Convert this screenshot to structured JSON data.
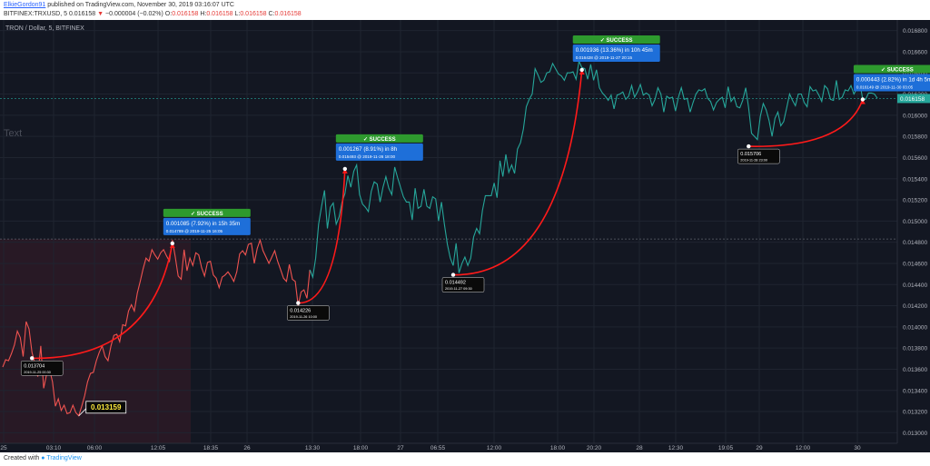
{
  "header": {
    "author": "ElkieGordon91",
    "published": "published on TradingView.com, November 30, 2019 03:16:07 UTC",
    "symbol_line": "BITFINEX:TRXUSD, 5",
    "last": "0.016158",
    "change_glyph": "▼",
    "change": "−0.000004 (−0.02%)",
    "ohlc_o_label": "O:",
    "ohlc_o": "0.016158",
    "ohlc_h_label": "H:",
    "ohlc_h": "0.016158",
    "ohlc_l_label": "L:",
    "ohlc_l": "0.016158",
    "ohlc_c_label": "C:",
    "ohlc_c": "0.016158"
  },
  "footer": {
    "created_with": "Created with",
    "brand": "TradingView"
  },
  "chart_data": {
    "type": "line",
    "title": "TRON / Dollar, 5, BITFINEX",
    "watermark": "Text",
    "ylim": [
      0.0129,
      0.0169
    ],
    "y_ticks": [
      "0.016800",
      "0.016600",
      "0.016400",
      "0.016200",
      "0.016000",
      "0.015800",
      "0.015600",
      "0.015400",
      "0.015200",
      "0.015000",
      "0.014800",
      "0.014600",
      "0.014400",
      "0.014200",
      "0.014000",
      "0.013800",
      "0.013600",
      "0.013400",
      "0.013200",
      "0.013000"
    ],
    "x_ticks": [
      "25",
      "03:10",
      "06:00",
      "12:05",
      "18:35",
      "26",
      "13:30",
      "18:00",
      "27",
      "06:55",
      "12:00",
      "18:00",
      "20:20",
      "28",
      "12:30",
      "19:05",
      "29",
      "12:00",
      "30"
    ],
    "current_price_label": "0.016158",
    "dashed_level": 0.01483,
    "series": [
      {
        "values": [
          0.01362,
          0.01369,
          0.01368,
          0.01375,
          0.01383,
          0.01396,
          0.0139,
          0.01372,
          0.01405,
          0.01398,
          0.01376,
          0.01365,
          0.01353,
          0.01382,
          0.01342,
          0.01355,
          0.0136,
          0.01348,
          0.01325,
          0.01332,
          0.01321,
          0.01326,
          0.01318,
          0.01319,
          0.01326,
          0.01319,
          0.01316,
          0.01325,
          0.01335,
          0.01348,
          0.01356,
          0.01357,
          0.01368,
          0.01376,
          0.01382,
          0.01372,
          0.01368,
          0.01382,
          0.01392,
          0.01393,
          0.01386,
          0.01402,
          0.01401,
          0.01415,
          0.01421,
          0.01415,
          0.01432,
          0.01443,
          0.01455,
          0.01465,
          0.01462,
          0.01473,
          0.01468,
          0.01464,
          0.0147,
          0.01473,
          0.01467,
          0.01462,
          0.01482,
          0.01466,
          0.01448,
          0.01445,
          0.01473,
          0.01453,
          0.01465,
          0.01458,
          0.0147,
          0.01468,
          0.01456,
          0.01448,
          0.01461,
          0.01462,
          0.01449,
          0.01446,
          0.01437,
          0.01447,
          0.01449,
          0.01452,
          0.01448,
          0.01443,
          0.01452,
          0.01469,
          0.01472,
          0.01468,
          0.01478,
          0.01479,
          0.0146,
          0.01474,
          0.01482,
          0.01472,
          0.01466,
          0.0146,
          0.01466,
          0.01472,
          0.01462,
          0.01454,
          0.01446,
          0.01443,
          0.01459,
          0.01445,
          0.01443,
          0.0142,
          0.01433,
          0.01435,
          0.01427,
          0.01454,
          0.01447,
          0.01465,
          0.01497,
          0.01514,
          0.01529,
          0.01493,
          0.01513,
          0.01517,
          0.01497,
          0.01504,
          0.01518,
          0.01526,
          0.01543,
          0.01532,
          0.01547,
          0.01553,
          0.01525,
          0.01516,
          0.01513,
          0.01509,
          0.01528,
          0.01537,
          0.01535,
          0.01518,
          0.01532,
          0.01542,
          0.01531,
          0.01525,
          0.01551,
          0.01541,
          0.01532,
          0.01523,
          0.01518,
          0.01518,
          0.01501,
          0.01531,
          0.01512,
          0.01514,
          0.0153,
          0.01514,
          0.01512,
          0.01523,
          0.01521,
          0.015,
          0.01518,
          0.01497,
          0.01478,
          0.01465,
          0.01458,
          0.01479,
          0.01451,
          0.0146,
          0.01466,
          0.01458,
          0.01465,
          0.01485,
          0.01493,
          0.01488,
          0.0151,
          0.01524,
          0.01524,
          0.01524,
          0.01536,
          0.01522,
          0.01557,
          0.01542,
          0.01563,
          0.01546,
          0.01553,
          0.01545,
          0.01568,
          0.01574,
          0.01587,
          0.01608,
          0.01615,
          0.0162,
          0.01644,
          0.01638,
          0.01631,
          0.01633,
          0.0164,
          0.01641,
          0.01649,
          0.01644,
          0.01639,
          0.01637,
          0.01633,
          0.0164,
          0.0164,
          0.01641,
          0.01634,
          0.01651,
          0.01645,
          0.01644,
          0.01634,
          0.01648,
          0.01633,
          0.01643,
          0.01626,
          0.01621,
          0.01618,
          0.01614,
          0.01619,
          0.01606,
          0.01619,
          0.0162,
          0.01622,
          0.01615,
          0.01618,
          0.01628,
          0.01617,
          0.01622,
          0.01629,
          0.01619,
          0.01621,
          0.01619,
          0.01609,
          0.01615,
          0.01626,
          0.0162,
          0.01603,
          0.01618,
          0.01616,
          0.01617,
          0.01604,
          0.01617,
          0.01626,
          0.01615,
          0.01616,
          0.01603,
          0.01612,
          0.0162,
          0.01624,
          0.01623,
          0.01625,
          0.01616,
          0.01613,
          0.01605,
          0.01612,
          0.01615,
          0.01617,
          0.01607,
          0.01627,
          0.01613,
          0.01617,
          0.01608,
          0.01607,
          0.01614,
          0.01626,
          0.01607,
          0.01583,
          0.0158,
          0.01577,
          0.01599,
          0.01611,
          0.01605,
          0.01595,
          0.0158,
          0.01597,
          0.01603,
          0.0159,
          0.01594,
          0.01607,
          0.0162,
          0.01614,
          0.01609,
          0.0162,
          0.0162,
          0.01612,
          0.01608,
          0.01627,
          0.01623,
          0.01624,
          0.01619,
          0.01613,
          0.01628,
          0.01625,
          0.01615,
          0.01614,
          0.01633,
          0.01615,
          0.01617,
          0.01624,
          0.01623,
          0.01628,
          0.0162,
          0.01625,
          0.01631,
          0.01615,
          0.01615,
          0.01621,
          0.01621,
          0.0162,
          0.01616
        ]
      }
    ],
    "trades": [
      {
        "label": "SUCCESS",
        "stats": "0.001085 (7.92%) in 15h 35m",
        "entry_price": "0.013704",
        "entry_time": "2019-11-25 00:30",
        "exit_desc": "0.014789 @ 2019-11-25 16:05",
        "entry_idx": 10,
        "exit_idx": 58,
        "entry_val": 0.013704,
        "exit_val": 0.014789
      },
      {
        "label": "SUCCESS",
        "stats": "0.001267 (8.91%) in 8h",
        "entry_price": "0.014226",
        "entry_time": "2019-11-26 10:00",
        "exit_desc": "0.015493 @ 2019-11-26 18:00",
        "entry_idx": 101,
        "exit_idx": 117,
        "entry_val": 0.014226,
        "exit_val": 0.015493
      },
      {
        "label": "SUCCESS",
        "stats": "0.001936 (13.36%) in 10h 45m",
        "entry_price": "0.014492",
        "entry_time": "2019-11-27 09:30",
        "exit_desc": "0.016428 @ 2019-11-27 20:15",
        "entry_idx": 154,
        "exit_idx": 198,
        "entry_val": 0.014492,
        "exit_val": 0.016428
      },
      {
        "label": "SUCCESS",
        "stats": "0.000443 (2.82%) in 1d 4h 5m",
        "entry_price": "0.015706",
        "entry_time": "2019-11-28 23:00",
        "exit_desc": "0.016149 @ 2019-11-30 03:05",
        "entry_idx": 255,
        "exit_idx": 294,
        "entry_val": 0.015706,
        "exit_val": 0.016149
      }
    ],
    "low_label": "0.013159",
    "low_idx": 26,
    "low_val": 0.013159,
    "colors": {
      "background": "#131722",
      "grid": "#1f2430",
      "axis_text": "#b2b5be",
      "down": "#ef5350",
      "up": "#26a69a",
      "arc": "#ff1a1a",
      "success_bg": "#2e9a2e",
      "info_bg": "#1e6fd9",
      "price_label": "#26a69a",
      "low_text": "#ffeb3b"
    }
  }
}
